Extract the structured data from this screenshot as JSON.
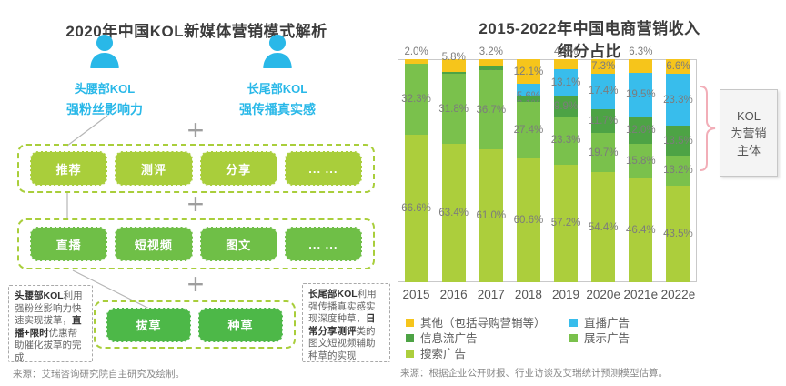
{
  "left_panel": {
    "title": "2020年中国KOL新媒体营销模式解析",
    "plus_symbol": "+",
    "personas": [
      {
        "name": "头腰部KOL",
        "trait": "强粉丝影响力"
      },
      {
        "name": "长尾部KOL",
        "trait": "强传播真实感"
      }
    ],
    "rows": [
      {
        "id": "formats-top",
        "color": "#a9ce3b",
        "items": [
          "推荐",
          "测评",
          "分享",
          "... ..."
        ]
      },
      {
        "id": "formats-mid",
        "color": "#6fbf47",
        "items": [
          "直播",
          "短视频",
          "图文",
          "... ..."
        ]
      },
      {
        "id": "goals",
        "color": "#4db848",
        "items": [
          "拔草",
          "种草"
        ]
      }
    ],
    "callouts": {
      "left": [
        {
          "text": "头腰部KOL",
          "bold": true
        },
        {
          "text": "利用强粉丝影响力快速实现拔草，",
          "bold": false
        },
        {
          "text": "直播+限时",
          "bold": true
        },
        {
          "text": "优惠帮助催化拔草的完成",
          "bold": false
        }
      ],
      "right": [
        {
          "text": "长尾部KOL",
          "bold": true
        },
        {
          "text": "利用强传播真实感实现深度种草，",
          "bold": false
        },
        {
          "text": "日常分享测评",
          "bold": true
        },
        {
          "text": "类的图文短视频辅助种草的实现",
          "bold": false
        }
      ]
    },
    "source": "来源：艾瑞咨询研究院自主研究及绘制。"
  },
  "right_panel": {
    "title_line1": "2015-2022年中国电商营销收入",
    "title_line2": "细分占比",
    "chart_data": {
      "type": "bar",
      "subtype": "stacked-100-percent",
      "categories": [
        "2015",
        "2016",
        "2017",
        "2018",
        "2019",
        "2020e",
        "2021e",
        "2022e"
      ],
      "series": [
        {
          "name": "其他（包括导购营销等）",
          "color": "#f6c51b",
          "values": [
            2.0,
            5.8,
            3.2,
            12.1,
            4.9,
            7.3,
            6.3,
            6.6
          ]
        },
        {
          "name": "直播广告",
          "color": "#38bdec",
          "values": [
            null,
            null,
            null,
            5.6,
            13.1,
            17.4,
            19.5,
            23.3
          ]
        },
        {
          "name": "信息流广告",
          "color": "#4da345",
          "values": [
            null,
            1.0,
            1.8,
            3.1,
            9.9,
            11.7,
            12.0,
            13.5
          ]
        },
        {
          "name": "展示广告",
          "color": "#7ac14c",
          "values": [
            32.3,
            31.8,
            36.7,
            27.4,
            23.3,
            19.7,
            15.8,
            13.2
          ]
        },
        {
          "name": "搜索广告",
          "color": "#acce3c",
          "values": [
            66.6,
            63.4,
            61.0,
            60.6,
            57.2,
            54.4,
            46.4,
            43.5
          ]
        }
      ],
      "value_suffix": "%",
      "ylim": [
        0,
        100
      ],
      "grid": false,
      "legend_position": "bottom",
      "legend_columns": [
        [
          "其他（包括导购营销等）",
          "信息流广告",
          "搜索广告"
        ],
        [
          "直播广告",
          "展示广告"
        ]
      ]
    },
    "kol_callout": {
      "lines": [
        "KOL",
        "为营销",
        "主体"
      ],
      "bracket_color": "#f2aeb8"
    },
    "source": "来源：根据企业公开财报、行业访谈及艾瑞统计预测模型估算。"
  },
  "colors": {
    "accent_cyan": "#29b8e8",
    "green_light": "#a9ce3b",
    "green_medium": "#6fbf47",
    "green_dark_btn": "#4db848",
    "yellow": "#f6c51b",
    "blue": "#38bdec",
    "feed_green": "#4da345",
    "display_green": "#7ac14c",
    "search_green": "#acce3c"
  }
}
